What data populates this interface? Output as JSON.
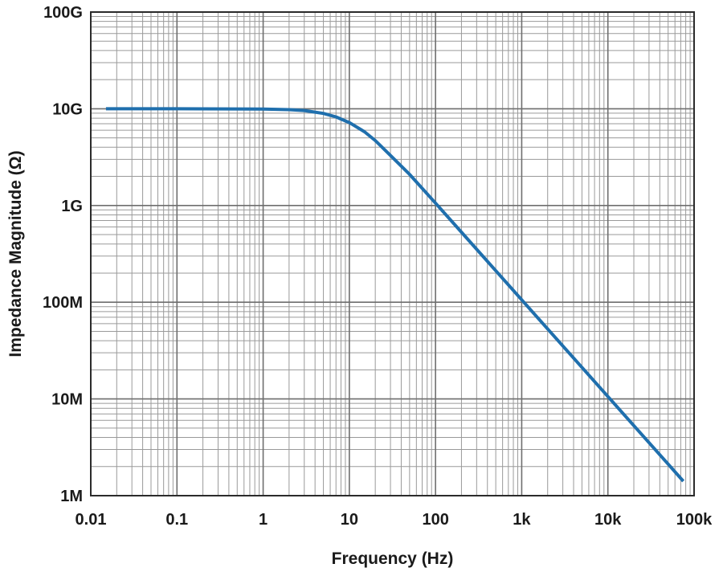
{
  "chart_data": {
    "type": "line",
    "title": "",
    "xlabel": "Frequency (Hz)",
    "ylabel": "Impedance Magnitude (Ω)",
    "x_scale": "log",
    "y_scale": "log",
    "xlim": [
      0.01,
      100000
    ],
    "ylim": [
      1000000,
      100000000000
    ],
    "grid": true,
    "x_ticks": [
      {
        "value": 0.01,
        "label": "0.01"
      },
      {
        "value": 0.1,
        "label": "0.1"
      },
      {
        "value": 1,
        "label": "1"
      },
      {
        "value": 10,
        "label": "10"
      },
      {
        "value": 100,
        "label": "100"
      },
      {
        "value": 1000,
        "label": "1k"
      },
      {
        "value": 10000,
        "label": "10k"
      },
      {
        "value": 100000,
        "label": "100k"
      }
    ],
    "y_ticks": [
      {
        "value": 1000000,
        "label": "1M"
      },
      {
        "value": 10000000,
        "label": "10M"
      },
      {
        "value": 100000000,
        "label": "100M"
      },
      {
        "value": 1000000000,
        "label": "1G"
      },
      {
        "value": 10000000000,
        "label": "10G"
      },
      {
        "value": 100000000000,
        "label": "100G"
      }
    ],
    "series": [
      {
        "color": "#1f6fad",
        "x": [
          0.015,
          0.1,
          1,
          2,
          3,
          5,
          7,
          10,
          15,
          20,
          30,
          50,
          100,
          200,
          500,
          1000,
          2000,
          5000,
          10000,
          20000,
          50000,
          75000
        ],
        "y": [
          10000000000,
          10000000000,
          9950000000,
          9800000000,
          9580000000,
          8950000000,
          8240000000,
          7200000000,
          5790000000,
          4690000000,
          3300000000,
          2100000000,
          1060000000,
          530000000,
          212000000,
          106000000,
          53000000,
          21200000,
          10600000,
          5300000,
          2120000,
          1410000
        ]
      }
    ]
  }
}
